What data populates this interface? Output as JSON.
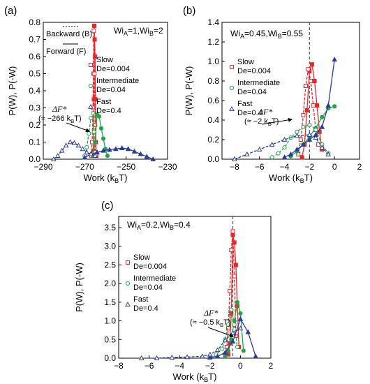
{
  "figure": {
    "legend_labels": {
      "backward": "Backward (B)",
      "forward": "Forward (F)",
      "slow": "Slow",
      "slow_de": "De=0.004",
      "intermediate": "Intermediate",
      "intermediate_de": "De=0.04",
      "fast": "Fast",
      "fast_de": "De=0.4"
    },
    "colors": {
      "slow": "#e8262b",
      "intermediate": "#1fa64a",
      "fast": "#2b3a9c",
      "dashed_line": "#555555"
    }
  },
  "chart_data": [
    {
      "type": "line",
      "panel_label": "(a)",
      "params": {
        "wi_a": "1",
        "wi_b": "2"
      },
      "xlabel": "Work (k",
      "xlabel_sub": "B",
      "xlabel_tail": "T)",
      "ylabel": "P(W), P(-W)",
      "xlim": [
        -290,
        -230
      ],
      "ylim": [
        0,
        0.8
      ],
      "xticks": [
        "-290",
        "-270",
        "-250",
        "-230"
      ],
      "yticks": [
        "0.0",
        "0.1",
        "0.2",
        "0.3",
        "0.4",
        "0.5",
        "0.6",
        "0.7",
        "0.8"
      ],
      "annotation": {
        "line1": "ΔF*",
        "line2": "(≈ −266 k",
        "line2_sub": "B",
        "line2_tail": "T)",
        "x": -265.6
      },
      "series": [
        {
          "name": "Slow F",
          "group": "slow",
          "dir": "F",
          "x": [
            -265.8,
            -265.6,
            -265.4,
            -265.2,
            -265.0,
            -264.8,
            -264.6,
            -264.4
          ],
          "y": [
            0.05,
            0.35,
            0.78,
            0.7,
            0.6,
            0.35,
            0.1,
            0.02
          ]
        },
        {
          "name": "Slow B",
          "group": "slow",
          "dir": "B",
          "x": [
            -266.8,
            -266.4,
            -266.0,
            -265.8,
            -265.6,
            -265.3,
            -265.0,
            -264.6
          ],
          "y": [
            0.02,
            0.1,
            0.3,
            0.5,
            0.75,
            0.5,
            0.2,
            0.03
          ]
        },
        {
          "name": "Intermediate F",
          "group": "intermediate",
          "dir": "F",
          "x": [
            -266,
            -265,
            -264,
            -263,
            -262,
            -261,
            -260,
            -259
          ],
          "y": [
            0.02,
            0.1,
            0.26,
            0.25,
            0.18,
            0.12,
            0.06,
            0.02
          ]
        },
        {
          "name": "Intermediate B",
          "group": "intermediate",
          "dir": "B",
          "x": [
            -270,
            -269,
            -268,
            -267,
            -266,
            -265.5,
            -265
          ],
          "y": [
            0.02,
            0.07,
            0.15,
            0.24,
            0.27,
            0.16,
            0.04
          ]
        },
        {
          "name": "Fast F",
          "group": "fast",
          "dir": "F",
          "x": [
            -270,
            -267,
            -264,
            -261,
            -258,
            -255,
            -252,
            -249,
            -246,
            -243,
            -240,
            -237
          ],
          "y": [
            0.01,
            0.03,
            0.04,
            0.05,
            0.055,
            0.06,
            0.065,
            0.06,
            0.045,
            0.03,
            0.015,
            0.0
          ]
        },
        {
          "name": "Fast B",
          "group": "fast",
          "dir": "B",
          "x": [
            -285,
            -283,
            -281,
            -279,
            -277,
            -275,
            -273,
            -271,
            -269,
            -267,
            -265
          ],
          "y": [
            0.0,
            0.02,
            0.05,
            0.08,
            0.1,
            0.095,
            0.08,
            0.06,
            0.04,
            0.03,
            0.02
          ]
        }
      ]
    },
    {
      "type": "line",
      "panel_label": "(b)",
      "params": {
        "wi_a": "0.45",
        "wi_b": "0.55"
      },
      "xlabel": "Work (k",
      "xlabel_sub": "B",
      "xlabel_tail": "T)",
      "ylabel": "P(W), P(-W)",
      "xlim": [
        -9,
        2
      ],
      "ylim": [
        0,
        1.4
      ],
      "xticks": [
        "-8",
        "-6",
        "-4",
        "-2",
        "0",
        "2"
      ],
      "yticks": [
        "0.0",
        "0.2",
        "0.4",
        "0.6",
        "0.8",
        "1.0",
        "1.2",
        "1.4"
      ],
      "annotation": {
        "line1": "ΔF*",
        "line2": "(≈ −2 k",
        "line2_sub": "B",
        "line2_tail": "T)",
        "x": -2.0
      },
      "series": [
        {
          "name": "Slow F",
          "group": "slow",
          "dir": "F",
          "x": [
            -2.6,
            -2.4,
            -2.2,
            -2.0,
            -1.8,
            -1.6,
            -1.4,
            -1.2,
            -1.0
          ],
          "y": [
            0.02,
            0.15,
            0.5,
            0.9,
            0.97,
            0.8,
            0.55,
            0.28,
            0.1
          ]
        },
        {
          "name": "Slow B",
          "group": "slow",
          "dir": "B",
          "x": [
            -2.9,
            -2.7,
            -2.5,
            -2.3,
            -2.1,
            -1.9,
            -1.7,
            -1.5,
            -1.3
          ],
          "y": [
            0.05,
            0.2,
            0.45,
            0.75,
            0.92,
            0.8,
            0.55,
            0.3,
            0.15
          ]
        },
        {
          "name": "Intermediate F",
          "group": "intermediate",
          "dir": "F",
          "x": [
            -3.5,
            -3.0,
            -2.5,
            -2.0,
            -1.5,
            -1.0,
            -0.5,
            0.0
          ],
          "y": [
            0.03,
            0.08,
            0.15,
            0.23,
            0.32,
            0.43,
            0.52,
            0.54
          ]
        },
        {
          "name": "Intermediate B",
          "group": "intermediate",
          "dir": "B",
          "x": [
            -5.0,
            -4.5,
            -4.0,
            -3.5,
            -3.0,
            -2.5,
            -2.0,
            -1.5,
            -1.0,
            -0.5
          ],
          "y": [
            0.02,
            0.06,
            0.12,
            0.22,
            0.28,
            0.33,
            0.35,
            0.3,
            0.15,
            0.06
          ]
        },
        {
          "name": "Fast F",
          "group": "fast",
          "dir": "F",
          "x": [
            -4.0,
            -3.5,
            -3.0,
            -2.5,
            -2.0,
            -1.5,
            -1.0,
            -0.5,
            0.0
          ],
          "y": [
            0.02,
            0.05,
            0.1,
            0.15,
            0.2,
            0.25,
            0.33,
            0.55,
            1.02
          ]
        },
        {
          "name": "Fast B",
          "group": "fast",
          "dir": "B",
          "x": [
            -8.0,
            -7.0,
            -6.0,
            -5.0,
            -4.0,
            -3.0,
            -2.0,
            -1.5,
            -1.0,
            -0.5
          ],
          "y": [
            0.0,
            0.05,
            0.1,
            0.15,
            0.2,
            0.24,
            0.25,
            0.22,
            0.12,
            0.05
          ]
        }
      ]
    },
    {
      "type": "line",
      "panel_label": "(c)",
      "params": {
        "wi_a": "0.2",
        "wi_b": "0.4"
      },
      "xlabel": "Work (k",
      "xlabel_sub": "B",
      "xlabel_tail": "T)",
      "ylabel": "P(W), P(-W)",
      "xlim": [
        -8,
        2
      ],
      "ylim": [
        0,
        3.8
      ],
      "xticks": [
        "-8",
        "-6",
        "-4",
        "-2",
        "0",
        "2"
      ],
      "yticks": [
        "0.0",
        "0.5",
        "1.0",
        "1.5",
        "2.0",
        "2.5",
        "3.0",
        "3.5"
      ],
      "annotation": {
        "line1": "ΔF*",
        "line2": "(≈ −0.5 k",
        "line2_sub": "B",
        "line2_tail": "T)",
        "x": -0.5
      },
      "series": [
        {
          "name": "Slow F",
          "group": "slow",
          "dir": "F",
          "x": [
            -0.8,
            -0.7,
            -0.6,
            -0.5,
            -0.4,
            -0.3,
            -0.2,
            -0.1
          ],
          "y": [
            0.1,
            0.4,
            1.2,
            3.3,
            3.1,
            2.5,
            1.4,
            0.3
          ]
        },
        {
          "name": "Slow B",
          "group": "slow",
          "dir": "B",
          "x": [
            -1.0,
            -0.9,
            -0.8,
            -0.7,
            -0.6,
            -0.5,
            -0.4,
            -0.3
          ],
          "y": [
            0.1,
            0.3,
            0.8,
            1.8,
            2.9,
            3.4,
            2.2,
            0.6
          ]
        },
        {
          "name": "Intermediate F",
          "group": "intermediate",
          "dir": "F",
          "x": [
            -1.0,
            -0.8,
            -0.6,
            -0.4,
            -0.2,
            0.0,
            0.2
          ],
          "y": [
            0.05,
            0.2,
            0.5,
            1.0,
            1.5,
            1.2,
            0.2
          ]
        },
        {
          "name": "Intermediate B",
          "group": "intermediate",
          "dir": "B",
          "x": [
            -2.0,
            -1.6,
            -1.2,
            -1.0,
            -0.8,
            -0.6,
            -0.4,
            -0.2
          ],
          "y": [
            0.03,
            0.1,
            0.25,
            0.5,
            0.9,
            1.3,
            0.9,
            0.3
          ]
        },
        {
          "name": "Fast F",
          "group": "fast",
          "dir": "F",
          "x": [
            -2.0,
            -1.5,
            -1.0,
            -0.5,
            0.0,
            0.5,
            1.0
          ],
          "y": [
            0.02,
            0.05,
            0.15,
            0.45,
            1.05,
            0.7,
            0.05
          ]
        },
        {
          "name": "Fast B",
          "group": "fast",
          "dir": "B",
          "x": [
            -6.5,
            -5.5,
            -4.5,
            -3.5,
            -2.5,
            -2.0,
            -1.5,
            -1.0,
            -0.5,
            0.0
          ],
          "y": [
            0.0,
            0.0,
            0.02,
            0.03,
            0.05,
            0.1,
            0.22,
            0.48,
            0.68,
            0.8
          ]
        }
      ]
    }
  ]
}
